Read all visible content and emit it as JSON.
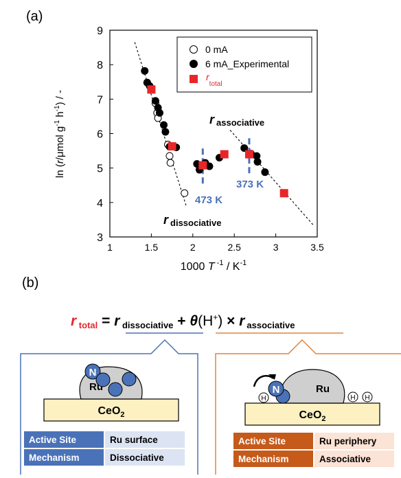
{
  "panel_a": {
    "label": "(a)",
    "ylabel": {
      "prefix": "ln (",
      "r": "r",
      "mid": "/μmol g",
      "exp1": "-1",
      "h": " h",
      "exp2": "-1",
      "suffix": ") / -"
    },
    "xlabel": {
      "prefix": "1000 ",
      "T": "T",
      "exp1": " -1",
      "mid": " / K",
      "exp2": "-1"
    },
    "annotations": {
      "r_associative": {
        "r": "r",
        "sub": "associative"
      },
      "r_dissociative": {
        "r": "r",
        "sub": "dissociative"
      },
      "t473": "473 K",
      "t373": "373 K"
    },
    "legend": {
      "open": "0 mA",
      "filled": "6 mA_Experimental",
      "total_r": "r",
      "total_sub": "total"
    }
  },
  "chart_data": {
    "type": "scatter",
    "xlim": [
      1,
      3.5
    ],
    "ylim": [
      3,
      9
    ],
    "xticks": [
      "1",
      "1.5",
      "2",
      "2.5",
      "3",
      "3.5"
    ],
    "yticks": [
      "3",
      "4",
      "5",
      "6",
      "7",
      "8",
      "9"
    ],
    "grid": false,
    "legend_position": "top-right",
    "series": [
      {
        "name": "0 mA",
        "marker": "open-circle",
        "points": [
          [
            1.45,
            7.48
          ],
          [
            1.5,
            7.3
          ],
          [
            1.55,
            6.88
          ],
          [
            1.57,
            6.6
          ],
          [
            1.58,
            6.45
          ],
          [
            1.7,
            5.68
          ],
          [
            1.72,
            5.35
          ],
          [
            1.73,
            5.15
          ],
          [
            1.9,
            4.27
          ]
        ]
      },
      {
        "name": "6 mA_Experimental",
        "marker": "filled-circle",
        "points": [
          [
            1.42,
            7.82
          ],
          [
            1.45,
            7.48
          ],
          [
            1.48,
            7.38
          ],
          [
            1.55,
            6.95
          ],
          [
            1.58,
            6.75
          ],
          [
            1.6,
            6.6
          ],
          [
            1.65,
            6.25
          ],
          [
            1.67,
            6.05
          ],
          [
            1.72,
            5.62
          ],
          [
            1.8,
            5.6
          ],
          [
            2.05,
            5.12
          ],
          [
            2.08,
            4.95
          ],
          [
            2.15,
            5.15
          ],
          [
            2.2,
            5.05
          ],
          [
            2.32,
            5.3
          ],
          [
            2.62,
            5.58
          ],
          [
            2.7,
            5.42
          ],
          [
            2.77,
            5.35
          ],
          [
            2.78,
            5.18
          ],
          [
            2.87,
            4.88
          ]
        ]
      },
      {
        "name": "r total",
        "marker": "red-square",
        "points": [
          [
            1.5,
            7.28
          ],
          [
            1.75,
            5.63
          ],
          [
            2.12,
            5.08
          ],
          [
            2.38,
            5.4
          ],
          [
            2.68,
            5.4
          ],
          [
            3.1,
            4.27
          ]
        ]
      }
    ],
    "fit_lines": [
      {
        "name": "r dissociative",
        "x": [
          1.3,
          1.92
        ],
        "y": [
          8.65,
          3.9
        ]
      },
      {
        "name": "r associative",
        "x": [
          2.45,
          3.45
        ],
        "y": [
          6.1,
          3.35
        ]
      }
    ],
    "markers_vertical": [
      {
        "label": "473 K",
        "x": 2.12,
        "y_range": [
          4.55,
          5.6
        ]
      },
      {
        "label": "373 K",
        "x": 2.68,
        "y_range": [
          4.85,
          5.95
        ]
      }
    ],
    "colors": {
      "total": "#e8262a",
      "guide": "#4a72b8"
    }
  },
  "panel_b": {
    "label": "(b)",
    "equation": {
      "r1": "r",
      "s1": " total",
      "eq": " = ",
      "r2": "r",
      "s2": " dissociative",
      "plus": " + ",
      "theta": "θ",
      "h": "(H",
      "hsup": "+",
      "hclose": ")",
      "times": " × ",
      "r3": "r",
      "s3": "associative"
    },
    "left": {
      "n_atom": "N",
      "ru": "Ru",
      "support": "CeO",
      "support_sub": "2",
      "table": [
        {
          "key": "Active Site",
          "value": "Ru surface"
        },
        {
          "key": "Mechanism",
          "value": "Dissociative"
        }
      ]
    },
    "right": {
      "n_atom": "N",
      "h_atom": "H",
      "ru": "Ru",
      "support": "CeO",
      "support_sub": "2",
      "table": [
        {
          "key": "Active Site",
          "value": "Ru periphery"
        },
        {
          "key": "Mechanism",
          "value": "Associative"
        }
      ]
    },
    "colors": {
      "left": "#4a72b8",
      "right": "#c55a1b"
    }
  }
}
